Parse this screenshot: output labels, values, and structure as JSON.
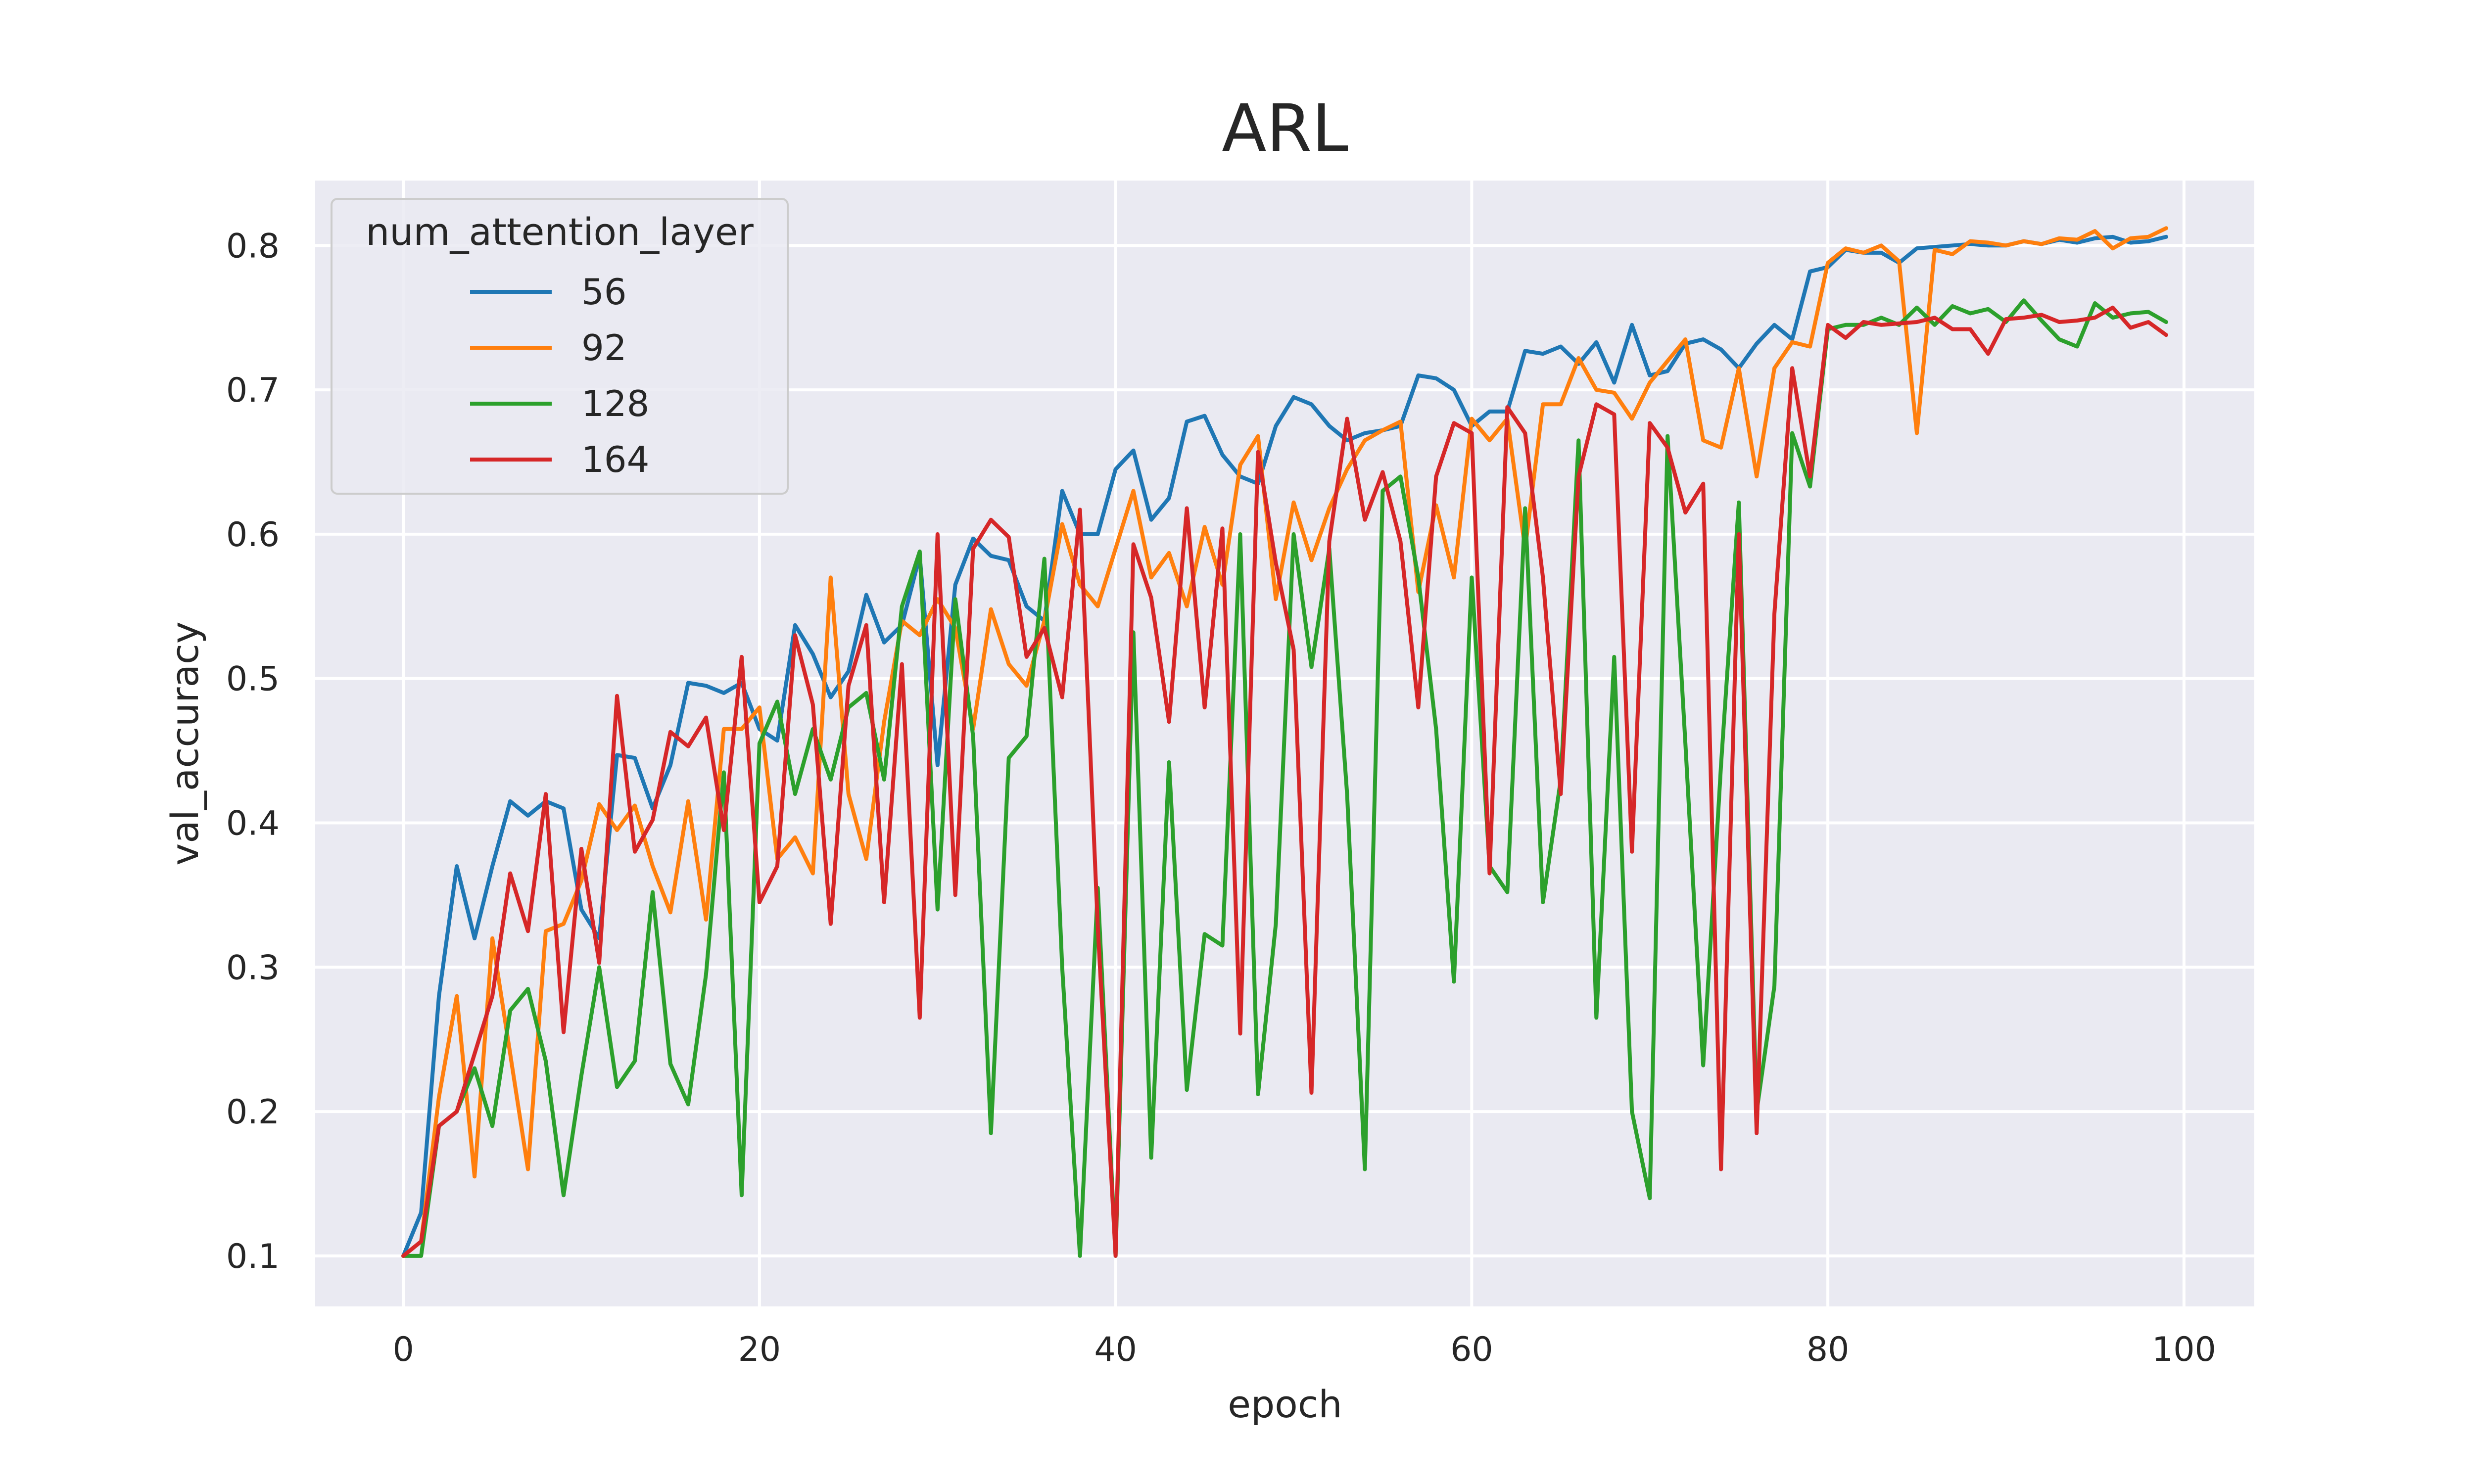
{
  "chart_data": {
    "type": "line",
    "title": "ARL",
    "xlabel": "epoch",
    "ylabel": "val_accuracy",
    "xlim": [
      -4.95,
      103.95
    ],
    "ylim": [
      0.065,
      0.845
    ],
    "xticks": [
      0,
      20,
      40,
      60,
      80,
      100
    ],
    "yticks": [
      0.1,
      0.2,
      0.3,
      0.4,
      0.5,
      0.6,
      0.7,
      0.8
    ],
    "grid": true,
    "legend": {
      "title": "num_attention_layer",
      "placement": "top-left"
    },
    "colors": {
      "56": "#1f77b4",
      "92": "#ff7f0e",
      "128": "#2ca02c",
      "164": "#d62728",
      "background": "#eaeaf2",
      "grid": "#ffffff"
    },
    "series": [
      {
        "name": "56",
        "color": "#1f77b4",
        "values": [
          0.1,
          0.13,
          0.28,
          0.37,
          0.32,
          0.37,
          0.415,
          0.405,
          0.415,
          0.41,
          0.34,
          0.32,
          0.447,
          0.445,
          0.41,
          0.44,
          0.497,
          0.495,
          0.49,
          0.497,
          0.465,
          0.457,
          0.537,
          0.517,
          0.487,
          0.505,
          0.558,
          0.525,
          0.537,
          0.585,
          0.44,
          0.565,
          0.597,
          0.585,
          0.582,
          0.55,
          0.54,
          0.63,
          0.6,
          0.6,
          0.645,
          0.658,
          0.61,
          0.625,
          0.678,
          0.682,
          0.655,
          0.64,
          0.635,
          0.675,
          0.695,
          0.69,
          0.675,
          0.665,
          0.67,
          0.672,
          0.675,
          0.71,
          0.708,
          0.7,
          0.675,
          0.685,
          0.685,
          0.727,
          0.725,
          0.73,
          0.718,
          0.733,
          0.705,
          0.745,
          0.71,
          0.713,
          0.732,
          0.735,
          0.728,
          0.715,
          0.732,
          0.745,
          0.735,
          0.782,
          0.785,
          0.797,
          0.795,
          0.795,
          0.788,
          0.798,
          0.799,
          0.8,
          0.801,
          0.8,
          0.8,
          0.803,
          0.801,
          0.804,
          0.802,
          0.805,
          0.806,
          0.802,
          0.803,
          0.806
        ]
      },
      {
        "name": "92",
        "color": "#ff7f0e",
        "values": [
          0.1,
          0.11,
          0.21,
          0.28,
          0.155,
          0.32,
          0.24,
          0.16,
          0.325,
          0.33,
          0.36,
          0.413,
          0.395,
          0.412,
          0.37,
          0.338,
          0.415,
          0.333,
          0.465,
          0.465,
          0.48,
          0.375,
          0.39,
          0.365,
          0.57,
          0.42,
          0.375,
          0.47,
          0.54,
          0.53,
          0.555,
          0.535,
          0.465,
          0.548,
          0.51,
          0.495,
          0.54,
          0.607,
          0.565,
          0.55,
          0.59,
          0.63,
          0.57,
          0.587,
          0.55,
          0.605,
          0.565,
          0.648,
          0.668,
          0.555,
          0.622,
          0.582,
          0.618,
          0.645,
          0.665,
          0.672,
          0.678,
          0.56,
          0.62,
          0.57,
          0.68,
          0.665,
          0.68,
          0.59,
          0.69,
          0.69,
          0.722,
          0.7,
          0.698,
          0.68,
          0.705,
          0.72,
          0.735,
          0.665,
          0.66,
          0.715,
          0.64,
          0.715,
          0.733,
          0.73,
          0.788,
          0.798,
          0.795,
          0.8,
          0.789,
          0.67,
          0.797,
          0.794,
          0.803,
          0.802,
          0.8,
          0.803,
          0.801,
          0.805,
          0.804,
          0.81,
          0.798,
          0.805,
          0.806,
          0.812
        ]
      },
      {
        "name": "128",
        "color": "#2ca02c",
        "values": [
          0.1,
          0.1,
          0.19,
          0.2,
          0.23,
          0.19,
          0.27,
          0.285,
          0.235,
          0.142,
          0.225,
          0.3,
          0.217,
          0.235,
          0.352,
          0.233,
          0.205,
          0.295,
          0.435,
          0.142,
          0.455,
          0.484,
          0.42,
          0.465,
          0.43,
          0.48,
          0.49,
          0.43,
          0.55,
          0.588,
          0.34,
          0.555,
          0.46,
          0.185,
          0.445,
          0.46,
          0.583,
          0.3,
          0.1,
          0.355,
          0.1,
          0.532,
          0.168,
          0.442,
          0.215,
          0.323,
          0.315,
          0.6,
          0.212,
          0.33,
          0.6,
          0.508,
          0.59,
          0.42,
          0.16,
          0.63,
          0.64,
          0.57,
          0.465,
          0.29,
          0.57,
          0.37,
          0.352,
          0.618,
          0.345,
          0.43,
          0.665,
          0.265,
          0.515,
          0.2,
          0.14,
          0.668,
          0.455,
          0.232,
          0.44,
          0.622,
          0.2,
          0.287,
          0.67,
          0.633,
          0.742,
          0.745,
          0.745,
          0.75,
          0.745,
          0.757,
          0.745,
          0.758,
          0.753,
          0.756,
          0.747,
          0.762,
          0.748,
          0.735,
          0.73,
          0.76,
          0.75,
          0.753,
          0.754,
          0.747
        ]
      },
      {
        "name": "164",
        "color": "#d62728",
        "values": [
          0.1,
          0.11,
          0.19,
          0.2,
          0.24,
          0.28,
          0.365,
          0.325,
          0.42,
          0.255,
          0.382,
          0.303,
          0.488,
          0.38,
          0.402,
          0.463,
          0.453,
          0.473,
          0.395,
          0.515,
          0.345,
          0.37,
          0.53,
          0.482,
          0.33,
          0.495,
          0.537,
          0.345,
          0.51,
          0.265,
          0.6,
          0.35,
          0.59,
          0.61,
          0.598,
          0.515,
          0.535,
          0.487,
          0.617,
          0.328,
          0.1,
          0.593,
          0.556,
          0.47,
          0.618,
          0.48,
          0.604,
          0.254,
          0.657,
          0.58,
          0.52,
          0.213,
          0.595,
          0.68,
          0.61,
          0.643,
          0.595,
          0.48,
          0.64,
          0.677,
          0.67,
          0.365,
          0.688,
          0.67,
          0.57,
          0.42,
          0.64,
          0.69,
          0.683,
          0.38,
          0.677,
          0.66,
          0.615,
          0.635,
          0.16,
          0.6,
          0.185,
          0.545,
          0.715,
          0.64,
          0.745,
          0.736,
          0.747,
          0.745,
          0.746,
          0.747,
          0.75,
          0.742,
          0.742,
          0.725,
          0.749,
          0.75,
          0.752,
          0.747,
          0.748,
          0.75,
          0.757,
          0.743,
          0.747,
          0.738
        ]
      }
    ]
  }
}
